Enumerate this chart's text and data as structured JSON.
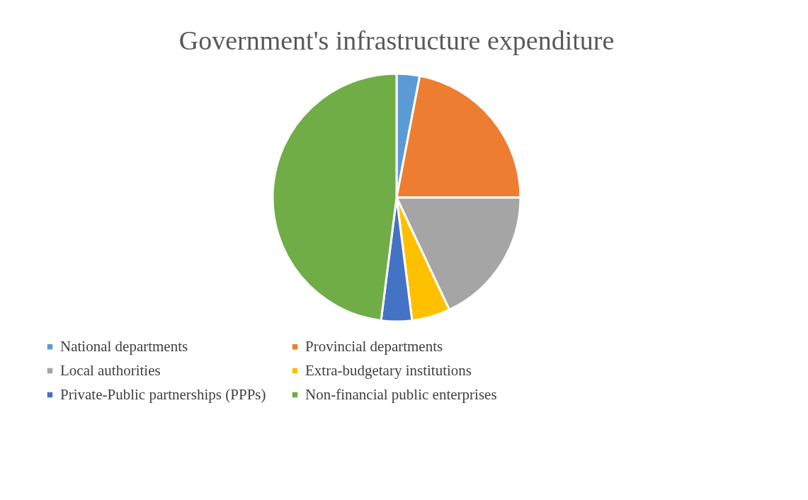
{
  "chart_data": {
    "type": "pie",
    "title": "Government's infrastructure expenditure",
    "categories": [
      "National departments",
      "Provincial departments",
      "Local authorities",
      "Extra-budgetary institutions",
      "Private-Public partnerships (PPPs)",
      "Non-financial public enterprises"
    ],
    "values": [
      3,
      22,
      18,
      5,
      4,
      48
    ],
    "colors": [
      "#5b9bd5",
      "#ed7d31",
      "#a5a5a5",
      "#ffc000",
      "#4472c4",
      "#70ad47"
    ],
    "legend": "bottom"
  }
}
